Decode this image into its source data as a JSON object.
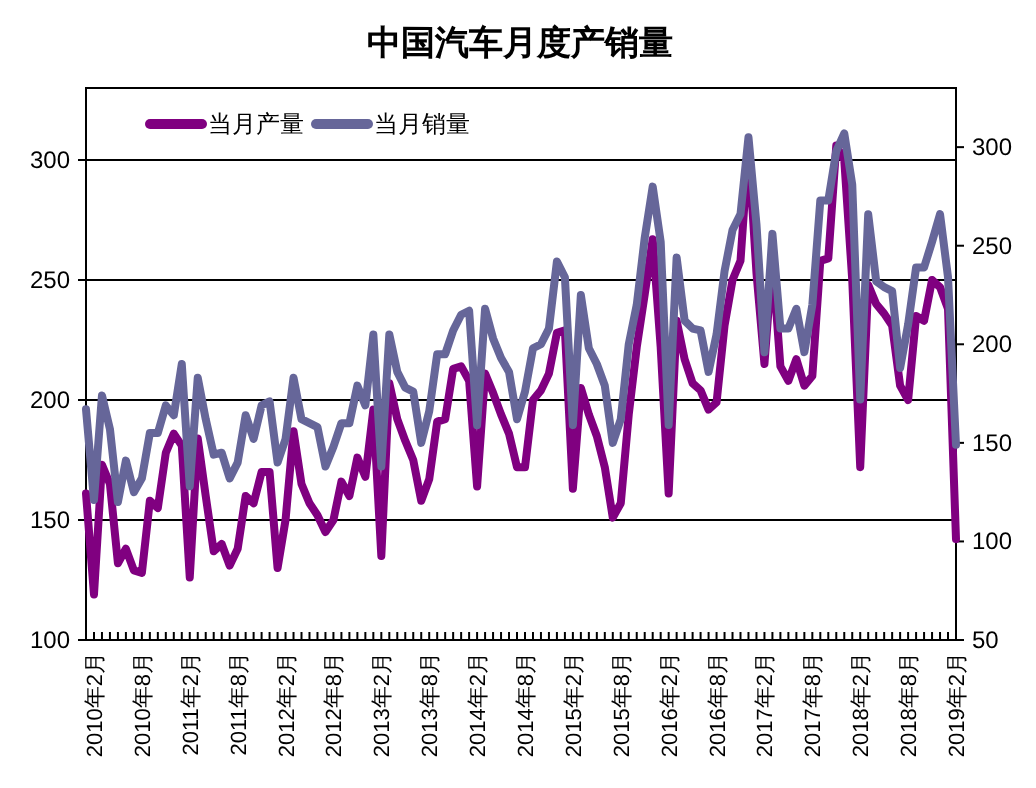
{
  "chart_data": {
    "type": "line",
    "title": "中国汽车月度产销量",
    "categories": [
      null,
      "2010年2月",
      null,
      null,
      null,
      null,
      null,
      "2010年8月",
      null,
      null,
      null,
      null,
      null,
      "2011年2月",
      null,
      null,
      null,
      null,
      null,
      "2011年8月",
      null,
      null,
      null,
      null,
      null,
      "2012年2月",
      null,
      null,
      null,
      null,
      null,
      "2012年8月",
      null,
      null,
      null,
      null,
      null,
      "2013年2月",
      null,
      null,
      null,
      null,
      null,
      "2013年8月",
      null,
      null,
      null,
      null,
      null,
      "2014年2月",
      null,
      null,
      null,
      null,
      null,
      "2014年8月",
      null,
      null,
      null,
      null,
      null,
      "2015年2月",
      null,
      null,
      null,
      null,
      null,
      "2015年8月",
      null,
      null,
      null,
      null,
      null,
      "2016年2月",
      null,
      null,
      null,
      null,
      null,
      "2016年8月",
      null,
      null,
      null,
      null,
      null,
      "2017年2月",
      null,
      null,
      null,
      null,
      null,
      "2017年8月",
      null,
      null,
      null,
      null,
      null,
      "2018年2月",
      null,
      null,
      null,
      null,
      null,
      "2018年8月",
      null,
      null,
      null,
      null,
      null,
      "2019年2月"
    ],
    "series": [
      {
        "name": "当月产量",
        "color": "#800080",
        "values": [
          161,
          119,
          173,
          165,
          132,
          138,
          129,
          128,
          158,
          155,
          178,
          186,
          181,
          126,
          184,
          160,
          137,
          140,
          131,
          138,
          160,
          157,
          170,
          170,
          130,
          150,
          187,
          165,
          157,
          152,
          145,
          150,
          166,
          160,
          176,
          168,
          196,
          135,
          207,
          192,
          183,
          175,
          158,
          167,
          191,
          192,
          213,
          214,
          208,
          164,
          211,
          203,
          194,
          186,
          172,
          172,
          200,
          204,
          211,
          228,
          229,
          163,
          205,
          194,
          185,
          172,
          151,
          157,
          194,
          222,
          244,
          267,
          222,
          161,
          233,
          217,
          207,
          204,
          196,
          199,
          231,
          250,
          258,
          306,
          253,
          215,
          259,
          214,
          208,
          217,
          206,
          210,
          258,
          259,
          306,
          300,
          250,
          172,
          248,
          240,
          236,
          231,
          206,
          200,
          235,
          233,
          250,
          247,
          238,
          142
        ]
      },
      {
        "name": "当月销量",
        "color": "#666699",
        "axis": "y2",
        "values": [
          167,
          121,
          174,
          157,
          120,
          141,
          125,
          132,
          155,
          155,
          169,
          164,
          190,
          128,
          183,
          162,
          144,
          145,
          132,
          140,
          164,
          152,
          169,
          171,
          140,
          152,
          183,
          162,
          160,
          158,
          138,
          148,
          160,
          160,
          179,
          169,
          205,
          138,
          205,
          186,
          178,
          176,
          150,
          166,
          195,
          195,
          207,
          215,
          217,
          159,
          218,
          203,
          193,
          186,
          162,
          176,
          198,
          200,
          208,
          242,
          234,
          159,
          225,
          198,
          190,
          179,
          150,
          162,
          200,
          220,
          254,
          280,
          252,
          159,
          244,
          212,
          208,
          207,
          186,
          205,
          237,
          258,
          266,
          305,
          261,
          196,
          256,
          208,
          208,
          218,
          196,
          220,
          273,
          273,
          298,
          307,
          281,
          172,
          266,
          232,
          229,
          227,
          188,
          210,
          239,
          239,
          252,
          266,
          234,
          149
        ]
      }
    ],
    "ylim": [
      100,
      330
    ],
    "yticks": [
      100,
      150,
      200,
      250,
      300
    ],
    "y2lim": [
      50,
      330
    ],
    "y2ticks": [
      50,
      100,
      150,
      200,
      250,
      300
    ],
    "grid": "y",
    "legend": "top left"
  }
}
